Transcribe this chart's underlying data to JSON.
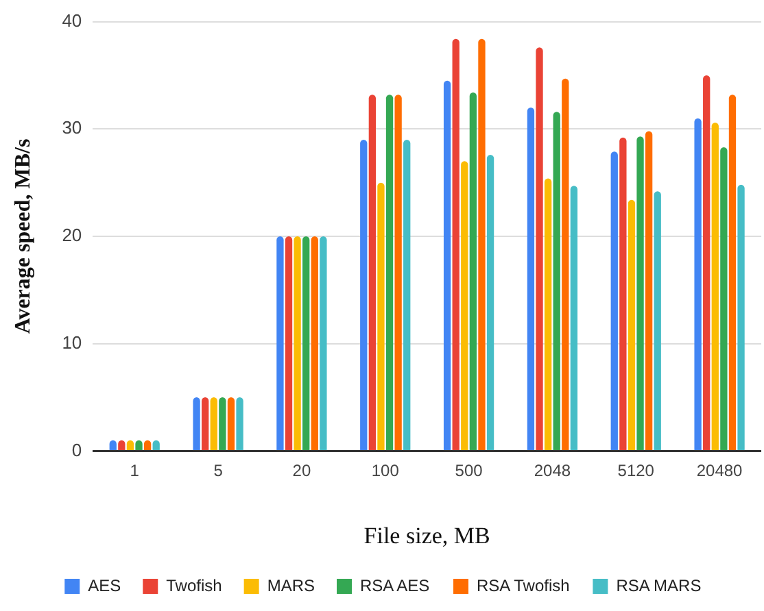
{
  "chart_data": {
    "type": "bar",
    "xlabel": "File size, MB",
    "ylabel": "Average speed, MB/s",
    "categories": [
      "1",
      "5",
      "20",
      "100",
      "500",
      "2048",
      "5120",
      "20480"
    ],
    "series": [
      {
        "name": "AES",
        "color": "#4285f4",
        "values": [
          1,
          5,
          20,
          29,
          34.5,
          32,
          27.9,
          31
        ]
      },
      {
        "name": "Twofish",
        "color": "#ea4335",
        "values": [
          1,
          5,
          20,
          33.2,
          38.4,
          37.6,
          29.2,
          35
        ]
      },
      {
        "name": "MARS",
        "color": "#fbbc04",
        "values": [
          1,
          5,
          20,
          25,
          27,
          25.4,
          23.4,
          30.6
        ]
      },
      {
        "name": "RSA AES",
        "color": "#34a853",
        "values": [
          1,
          5,
          20,
          33.2,
          33.4,
          31.6,
          29.3,
          28.3
        ]
      },
      {
        "name": "RSA Twofish",
        "color": "#ff6d01",
        "values": [
          1,
          5,
          20,
          33.2,
          38.4,
          34.7,
          29.8,
          33.2
        ]
      },
      {
        "name": "RSA MARS",
        "color": "#46bdc6",
        "values": [
          1,
          5,
          20,
          29,
          27.6,
          24.7,
          24.2,
          24.8
        ]
      }
    ],
    "ylim": [
      0,
      40
    ],
    "yticks": [
      0,
      10,
      20,
      30,
      40
    ],
    "grid": "y",
    "legend": "bottom"
  }
}
